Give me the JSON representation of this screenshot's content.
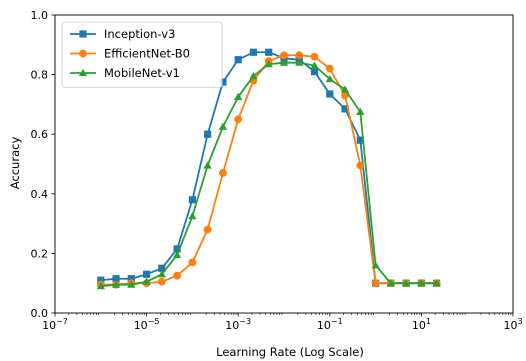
{
  "chart_data": {
    "type": "line",
    "title": "",
    "xlabel": "Learning Rate (Log Scale)",
    "ylabel": "Accuracy",
    "xscale": "log",
    "xlim": [
      1e-07,
      1000
    ],
    "ylim": [
      0.0,
      1.0
    ],
    "grid": false,
    "legend_position": "top-left",
    "x_ticks": [
      {
        "value": 1e-07,
        "base": "10",
        "exp": "−7"
      },
      {
        "value": 1e-05,
        "base": "10",
        "exp": "−5"
      },
      {
        "value": 0.001,
        "base": "10",
        "exp": "−3"
      },
      {
        "value": 0.1,
        "base": "10",
        "exp": "−1"
      },
      {
        "value": 10,
        "base": "10",
        "exp": "1"
      },
      {
        "value": 1000,
        "base": "10",
        "exp": "3"
      }
    ],
    "y_ticks": [
      "0.0",
      "0.2",
      "0.4",
      "0.6",
      "0.8",
      "1.0"
    ],
    "x": [
      1e-06,
      2.15e-06,
      4.64e-06,
      1e-05,
      2.15e-05,
      4.64e-05,
      0.0001,
      0.000215,
      0.000464,
      0.001,
      0.00215,
      0.00464,
      0.01,
      0.0215,
      0.0464,
      0.1,
      0.215,
      0.464,
      1,
      2.15,
      4.64,
      10,
      21.5
    ],
    "series": [
      {
        "name": "Inception-v3",
        "color": "#1f77b4",
        "marker": "square",
        "values": [
          0.11,
          0.115,
          0.115,
          0.13,
          0.15,
          0.215,
          0.38,
          0.6,
          0.775,
          0.85,
          0.875,
          0.875,
          0.855,
          0.85,
          0.81,
          0.735,
          0.685,
          0.58,
          0.1,
          0.1,
          0.1,
          0.1,
          0.1
        ]
      },
      {
        "name": "EfficientNet-B0",
        "color": "#ff7f0e",
        "marker": "circle",
        "values": [
          0.095,
          0.095,
          0.1,
          0.1,
          0.105,
          0.125,
          0.17,
          0.28,
          0.47,
          0.65,
          0.78,
          0.845,
          0.865,
          0.865,
          0.86,
          0.82,
          0.73,
          0.495,
          0.1,
          0.1,
          0.1,
          0.1,
          0.1
        ]
      },
      {
        "name": "MobileNet-v1",
        "color": "#2ca02c",
        "marker": "triangle",
        "values": [
          0.09,
          0.095,
          0.095,
          0.105,
          0.13,
          0.195,
          0.325,
          0.495,
          0.625,
          0.725,
          0.795,
          0.835,
          0.84,
          0.84,
          0.83,
          0.785,
          0.75,
          0.675,
          0.16,
          0.1,
          0.1,
          0.1,
          0.1
        ]
      }
    ]
  }
}
